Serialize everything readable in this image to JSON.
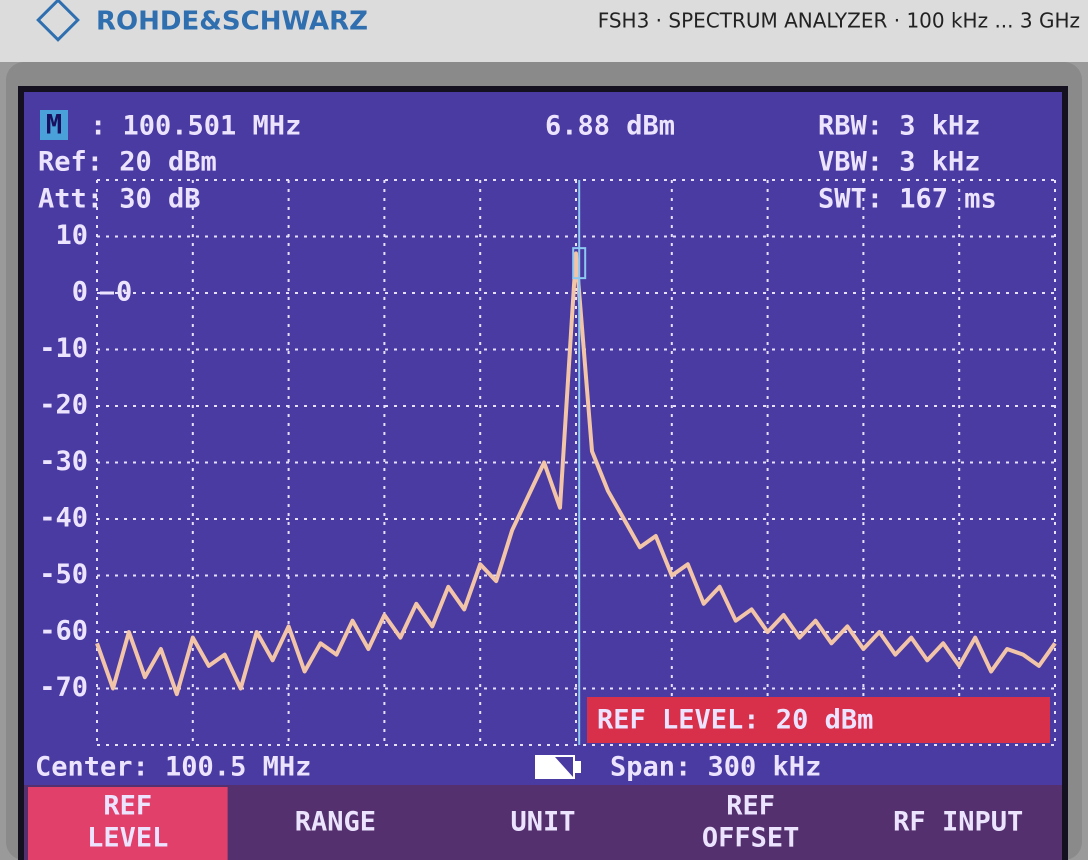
{
  "header": {
    "brand": "ROHDE&SCHWARZ",
    "model": "FSH3 · SPECTRUM ANALYZER · 100 kHz ... 3 GHz"
  },
  "readout": {
    "marker_icon": "M",
    "marker_freq": ": 100.501 MHz",
    "marker_level": "6.88 dBm",
    "ref": "Ref: 20 dBm",
    "att": "Att: 30 dB",
    "rbw": "RBW: 3 kHz",
    "vbw": "VBW: 3 kHz",
    "swt": "SWT: 167 ms"
  },
  "chart_data": {
    "type": "line",
    "x": [
      100.35,
      100.355,
      100.36,
      100.365,
      100.37,
      100.375,
      100.38,
      100.385,
      100.39,
      100.395,
      100.4,
      100.405,
      100.41,
      100.415,
      100.42,
      100.425,
      100.43,
      100.435,
      100.44,
      100.445,
      100.45,
      100.455,
      100.46,
      100.465,
      100.47,
      100.475,
      100.48,
      100.485,
      100.49,
      100.495,
      100.5,
      100.505,
      100.51,
      100.515,
      100.52,
      100.525,
      100.53,
      100.535,
      100.54,
      100.545,
      100.55,
      100.555,
      100.56,
      100.565,
      100.57,
      100.575,
      100.58,
      100.585,
      100.59,
      100.595,
      100.6,
      100.605,
      100.61,
      100.615,
      100.62,
      100.625,
      100.63,
      100.635,
      100.64,
      100.645,
      100.65
    ],
    "values": [
      -62,
      -70,
      -60,
      -68,
      -63,
      -71,
      -61,
      -66,
      -64,
      -70,
      -60,
      -65,
      -59,
      -67,
      -62,
      -64,
      -58,
      -63,
      -57,
      -61,
      -55,
      -59,
      -52,
      -56,
      -48,
      -51,
      -42,
      -36,
      -30,
      -38,
      7,
      -28,
      -35,
      -40,
      -45,
      -43,
      -50,
      -48,
      -55,
      -52,
      -58,
      -56,
      -60,
      -57,
      -61,
      -58,
      -62,
      -59,
      -63,
      -60,
      -64,
      -61,
      -65,
      -62,
      -66,
      -61,
      -67,
      -63,
      -64,
      -66,
      -62
    ],
    "color": "#f2c4a8",
    "xlim": [
      100.35,
      100.65
    ],
    "ylim": [
      -80,
      20
    ],
    "yticks": [
      10,
      0,
      -10,
      -20,
      -30,
      -40,
      -50,
      -60,
      -70
    ],
    "grid": true,
    "trace_ref_label": "0",
    "marker": {
      "x": 100.501,
      "y": 6.88
    }
  },
  "status": {
    "message": "REF LEVEL: 20 dBm",
    "center": "Center: 100.5 MHz",
    "span": "Span: 300 kHz"
  },
  "softkeys": [
    {
      "lines": [
        "REF",
        "LEVEL"
      ],
      "active": true
    },
    {
      "lines": [
        "RANGE"
      ],
      "active": false
    },
    {
      "lines": [
        "UNIT"
      ],
      "active": false
    },
    {
      "lines": [
        "REF",
        "OFFSET"
      ],
      "active": false
    },
    {
      "lines": [
        "RF INPUT"
      ],
      "active": false
    }
  ]
}
